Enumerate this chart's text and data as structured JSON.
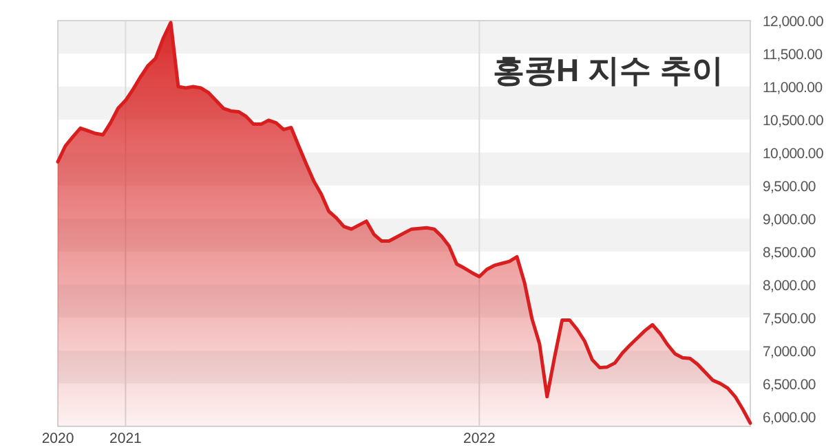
{
  "chart_data": {
    "type": "area",
    "title": "홍콩H 지수 추이",
    "categories": [
      "2020",
      null,
      null,
      null,
      null,
      null,
      null,
      null,
      null,
      "2021",
      null,
      null,
      null,
      null,
      null,
      null,
      null,
      null,
      null,
      null,
      null,
      null,
      null,
      null,
      null,
      null,
      null,
      null,
      null,
      null,
      null,
      null,
      null,
      null,
      null,
      null,
      null,
      null,
      null,
      null,
      null,
      null,
      null,
      null,
      null,
      null,
      null,
      null,
      null,
      null,
      null,
      null,
      null,
      null,
      null,
      null,
      "2022",
      null,
      null,
      null,
      null,
      null,
      null,
      null,
      null,
      null,
      null,
      null,
      null,
      null,
      null,
      null,
      null,
      null,
      null,
      null,
      null,
      null,
      null,
      null,
      null,
      null,
      null,
      null,
      null,
      null,
      null,
      null,
      null,
      null,
      null,
      null,
      null
    ],
    "values": [
      9860,
      10100,
      10240,
      10370,
      10330,
      10290,
      10270,
      10450,
      10670,
      10790,
      10960,
      11150,
      11320,
      11430,
      11730,
      11970,
      11000,
      10980,
      11000,
      10980,
      10910,
      10790,
      10670,
      10630,
      10620,
      10550,
      10430,
      10430,
      10490,
      10450,
      10350,
      10380,
      10100,
      9830,
      9570,
      9370,
      9110,
      9010,
      8880,
      8840,
      8900,
      8960,
      8760,
      8660,
      8660,
      8720,
      8780,
      8840,
      8850,
      8860,
      8840,
      8730,
      8580,
      8310,
      8250,
      8180,
      8120,
      8230,
      8290,
      8320,
      8350,
      8420,
      8030,
      7480,
      7100,
      6300,
      6900,
      7460,
      7460,
      7320,
      7140,
      6860,
      6740,
      6750,
      6810,
      6960,
      7080,
      7190,
      7300,
      7390,
      7260,
      7090,
      6950,
      6890,
      6880,
      6790,
      6670,
      6550,
      6500,
      6430,
      6300,
      6110,
      5900
    ],
    "color": "#d81e1e",
    "ylim": [
      5850,
      12000
    ],
    "yticks": [
      {
        "value": 6000,
        "label": "6,000.00"
      },
      {
        "value": 6500,
        "label": "6,500.00"
      },
      {
        "value": 7000,
        "label": "7,000.00"
      },
      {
        "value": 7500,
        "label": "7,500.00"
      },
      {
        "value": 8000,
        "label": "8,000.00"
      },
      {
        "value": 8500,
        "label": "8,500.00"
      },
      {
        "value": 9000,
        "label": "9,000.00"
      },
      {
        "value": 9500,
        "label": "9,500.00"
      },
      {
        "value": 10000,
        "label": "10,000.00"
      },
      {
        "value": 10500,
        "label": "10,500.00"
      },
      {
        "value": 11000,
        "label": "11,000.00"
      },
      {
        "value": 11500,
        "label": "11,500.00"
      },
      {
        "value": 12000,
        "label": "12,000.00"
      }
    ],
    "grid": true
  }
}
